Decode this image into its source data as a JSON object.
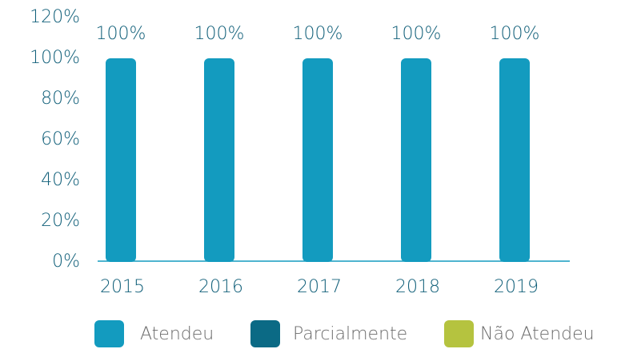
{
  "chart_data": {
    "type": "stacked_bar",
    "categories": [
      "2015",
      "2016",
      "2017",
      "2018",
      "2019"
    ],
    "series": [
      {
        "name": "Atendeu",
        "color": "#139bbf",
        "values": [
          100,
          100,
          100,
          100,
          100
        ],
        "value_labels": [
          "100%",
          "100%",
          "100%",
          "100%",
          "100%"
        ]
      },
      {
        "name": "Parcialmente",
        "color": "#0b6a85",
        "values": [
          0,
          0,
          0,
          0,
          0
        ]
      },
      {
        "name": "Não Atendeu",
        "color": "#b5c33f",
        "values": [
          0,
          0,
          0,
          0,
          0
        ]
      }
    ],
    "ylim": [
      0,
      120
    ],
    "yticks": [
      {
        "value": 0,
        "label": "0%"
      },
      {
        "value": 20,
        "label": "20%"
      },
      {
        "value": 40,
        "label": "40%"
      },
      {
        "value": 60,
        "label": "60%"
      },
      {
        "value": 80,
        "label": "80%"
      },
      {
        "value": 100,
        "label": "100%"
      },
      {
        "value": 120,
        "label": "120%"
      }
    ],
    "legend": "bottom"
  }
}
